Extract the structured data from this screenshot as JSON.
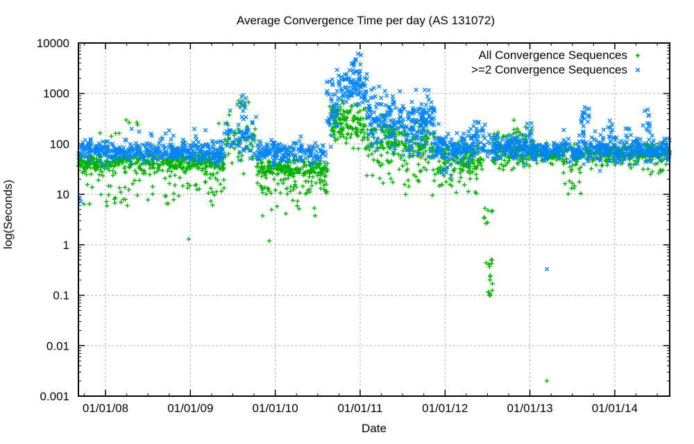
{
  "chart_data": {
    "type": "scatter",
    "title": "Average Convergence Time per day (AS 131072)",
    "xlabel": "Date",
    "ylabel": "log(Seconds)",
    "y_scale": "log",
    "ylim": [
      0.001,
      10000
    ],
    "y_tick_labels": [
      "10000",
      "1000",
      "100",
      "10",
      "1",
      "0.1",
      "0.01",
      "0.001"
    ],
    "y_tick_values": [
      10000,
      1000,
      100,
      10,
      1,
      0.1,
      0.01,
      0.001
    ],
    "x_tick_labels": [
      "01/01/08",
      "01/01/09",
      "01/01/10",
      "01/01/11",
      "01/01/12",
      "01/01/13",
      "01/01/14"
    ],
    "x_tick_years": [
      2008,
      2009,
      2010,
      2011,
      2012,
      2013,
      2014
    ],
    "x_range_years": [
      2007.681,
      2014.647
    ],
    "grid": true,
    "grid_color": "#b0b0b0",
    "axis_color": "#000000",
    "legend_position": "top-right",
    "series": [
      {
        "name": "All Convergence Sequences",
        "marker": "plus",
        "color": "#00b000",
        "baseline_note": "band ~30-50s, tails to 5-30s, spikes 2009.6 (~800s), 2010.7-2011 (~150-700s), dip ~0.1-0.6s mid-2012",
        "segments": [
          [
            2007.68,
            2009.4,
            420,
            1.62,
            0.1,
            0
          ],
          [
            2007.68,
            2009.4,
            70,
            0.72,
            1.45,
            1
          ],
          [
            2007.9,
            2009.42,
            12,
            2.0,
            2.48,
            1
          ],
          [
            2009.4,
            2009.78,
            55,
            2.05,
            0.28,
            0
          ],
          [
            2009.55,
            2009.7,
            6,
            2.55,
            2.92,
            1
          ],
          [
            2009.78,
            2010.62,
            185,
            1.52,
            0.1,
            0
          ],
          [
            2009.78,
            2010.62,
            70,
            1.0,
            1.46,
            1
          ],
          [
            2009.8,
            2010.55,
            10,
            0.55,
            0.95,
            1
          ],
          [
            2010.62,
            2011.06,
            130,
            2.42,
            0.2,
            0
          ],
          [
            2010.7,
            2010.98,
            6,
            2.72,
            2.88,
            1
          ],
          [
            2011.06,
            2011.5,
            110,
            2.08,
            0.22,
            0
          ],
          [
            2011.06,
            2011.5,
            12,
            1.2,
            1.7,
            1
          ],
          [
            2011.5,
            2011.88,
            100,
            1.98,
            0.22,
            0
          ],
          [
            2011.5,
            2011.88,
            12,
            0.9,
            1.5,
            1
          ],
          [
            2011.88,
            2012.45,
            140,
            1.7,
            0.16,
            0
          ],
          [
            2011.88,
            2012.45,
            25,
            1.0,
            1.5,
            1
          ],
          [
            2012.48,
            2012.56,
            12,
            -1.0,
            -0.15,
            1
          ],
          [
            2012.46,
            2012.56,
            8,
            0.25,
            0.9,
            1
          ],
          [
            2012.56,
            2013.05,
            145,
            1.85,
            0.16,
            0
          ],
          [
            2012.8,
            2012.95,
            7,
            2.2,
            2.5,
            1
          ],
          [
            2013.05,
            2013.35,
            80,
            1.8,
            0.09,
            0
          ],
          [
            2013.35,
            2014.02,
            150,
            1.78,
            0.13,
            0
          ],
          [
            2013.38,
            2013.6,
            12,
            1.0,
            1.5,
            1
          ],
          [
            2014.02,
            2014.65,
            150,
            1.82,
            0.11,
            0
          ],
          [
            2014.3,
            2014.6,
            8,
            1.3,
            1.62,
            1
          ]
        ],
        "outliers": [
          [
            2008.98,
            1.3
          ],
          [
            2009.93,
            1.2
          ],
          [
            2012.52,
            0.1
          ],
          [
            2012.53,
            0.105
          ],
          [
            2012.51,
            0.115
          ],
          [
            2012.535,
            0.1
          ],
          [
            2013.2,
            0.002
          ]
        ]
      },
      {
        "name": ">=2 Convergence Sequences",
        "marker": "cross",
        "color": "#0084ff",
        "baseline_note": "band ~60-110s, spike 2009.6 (~900s), big spike 2010.7-2011.05 up to ~5000s, elevated 2011 (~150-1000s), spikes late 2013/2014 to ~600s",
        "segments": [
          [
            2007.68,
            2009.4,
            420,
            1.85,
            0.1,
            0
          ],
          [
            2007.9,
            2009.4,
            8,
            2.1,
            2.32,
            1
          ],
          [
            2009.4,
            2009.78,
            60,
            2.18,
            0.22,
            0
          ],
          [
            2009.55,
            2009.72,
            8,
            2.6,
            2.95,
            1
          ],
          [
            2009.78,
            2010.6,
            185,
            1.82,
            0.1,
            0
          ],
          [
            2010.6,
            2010.74,
            40,
            2.7,
            0.3,
            0
          ],
          [
            2010.74,
            2011.08,
            100,
            3.15,
            0.22,
            0
          ],
          [
            2011.08,
            2011.5,
            120,
            2.52,
            0.26,
            0
          ],
          [
            2011.5,
            2011.88,
            110,
            2.35,
            0.28,
            0
          ],
          [
            2011.7,
            2011.84,
            25,
            2.6,
            0.2,
            0
          ],
          [
            2011.88,
            2012.45,
            150,
            1.95,
            0.15,
            0
          ],
          [
            2012.3,
            2012.47,
            15,
            2.1,
            2.45,
            1
          ],
          [
            2011.9,
            2012.1,
            5,
            1.35,
            1.55,
            1
          ],
          [
            2012.45,
            2012.56,
            15,
            1.9,
            0.12,
            0
          ],
          [
            2012.56,
            2013.05,
            150,
            1.93,
            0.12,
            0
          ],
          [
            2012.95,
            2013.03,
            6,
            2.2,
            2.45,
            1
          ],
          [
            2013.05,
            2013.35,
            80,
            1.86,
            0.09,
            0
          ],
          [
            2013.35,
            2014.02,
            160,
            1.9,
            0.13,
            0
          ],
          [
            2013.6,
            2013.72,
            18,
            2.2,
            2.78,
            1
          ],
          [
            2013.9,
            2013.98,
            8,
            2.1,
            2.5,
            1
          ],
          [
            2014.02,
            2014.65,
            160,
            1.88,
            0.11,
            0
          ],
          [
            2014.3,
            2014.42,
            12,
            2.1,
            2.72,
            1
          ],
          [
            2014.1,
            2014.2,
            6,
            2.05,
            2.4,
            1
          ]
        ],
        "outliers": [
          [
            2010.95,
            4800
          ],
          [
            2010.9,
            3900
          ],
          [
            2009.62,
            920
          ],
          [
            2013.2,
            0.33
          ],
          [
            2007.695,
            8.5
          ],
          [
            2007.71,
            7.2
          ]
        ]
      }
    ]
  }
}
